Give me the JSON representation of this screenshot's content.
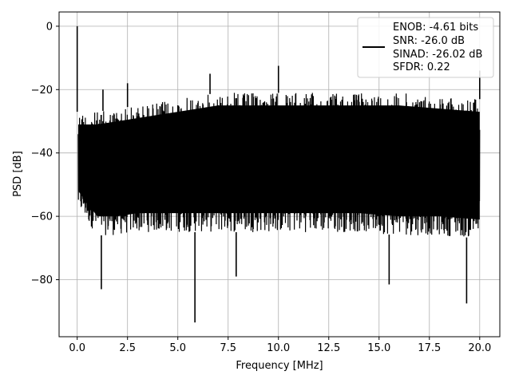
{
  "chart_data": {
    "type": "line",
    "title": "",
    "xlabel": "Frequency [MHz]",
    "ylabel": "PSD [dB]",
    "xlim": [
      -0.9,
      21.0
    ],
    "ylim": [
      -98.0,
      4.5
    ],
    "x_ticks": [
      0.0,
      2.5,
      5.0,
      7.5,
      10.0,
      12.5,
      15.0,
      17.5,
      20.0
    ],
    "x_tick_labels": [
      "0.0",
      "2.5",
      "5.0",
      "7.5",
      "10.0",
      "12.5",
      "15.0",
      "17.5",
      "20.0"
    ],
    "y_ticks": [
      0,
      -20,
      -40,
      -60,
      -80
    ],
    "y_tick_labels": [
      "0",
      "−20",
      "−40",
      "−60",
      "−80"
    ],
    "grid": true,
    "legend_position": "top-right",
    "series": [
      {
        "color": "#000000",
        "description": "Dense noisy PSD band spanning 0 to 20 MHz",
        "upper_envelope": {
          "x": [
            0.05,
            1.0,
            2.0,
            3.0,
            4.0,
            5.0,
            6.0,
            7.0,
            8.0,
            10.0,
            12.0,
            14.0,
            16.0,
            18.0,
            20.0
          ],
          "y": [
            -27,
            -27,
            -26,
            -25,
            -24,
            -23,
            -22,
            -21,
            -21,
            -21,
            -21,
            -21,
            -21,
            -22,
            -23
          ]
        },
        "lower_envelope": {
          "x": [
            0.05,
            1.0,
            2.0,
            3.0,
            4.0,
            5.0,
            6.0,
            7.0,
            8.0,
            10.0,
            12.0,
            14.0,
            16.0,
            18.0,
            20.0
          ],
          "y": [
            -58,
            -66,
            -66,
            -65,
            -65,
            -65,
            -65,
            -65,
            -65,
            -65,
            -65,
            -65,
            -66,
            -66,
            -67
          ]
        },
        "spikes": [
          {
            "x": 0.0,
            "y": 0.0
          },
          {
            "x": 1.28,
            "y": -20.0
          },
          {
            "x": 2.5,
            "y": -18.0
          },
          {
            "x": 6.6,
            "y": -15.0
          },
          {
            "x": 10.0,
            "y": -12.5
          },
          {
            "x": 20.0,
            "y": -14.0
          }
        ],
        "dips": [
          {
            "x": 1.2,
            "y": -83.0
          },
          {
            "x": 5.85,
            "y": -93.5
          },
          {
            "x": 7.9,
            "y": -79.0
          },
          {
            "x": 15.5,
            "y": -81.5
          },
          {
            "x": 19.35,
            "y": -87.5
          }
        ]
      }
    ],
    "legend_lines": [
      "ENOB: -4.61 bits",
      "SNR: -26.0 dB",
      "SINAD: -26.02 dB",
      "SFDR: 0.22"
    ]
  }
}
